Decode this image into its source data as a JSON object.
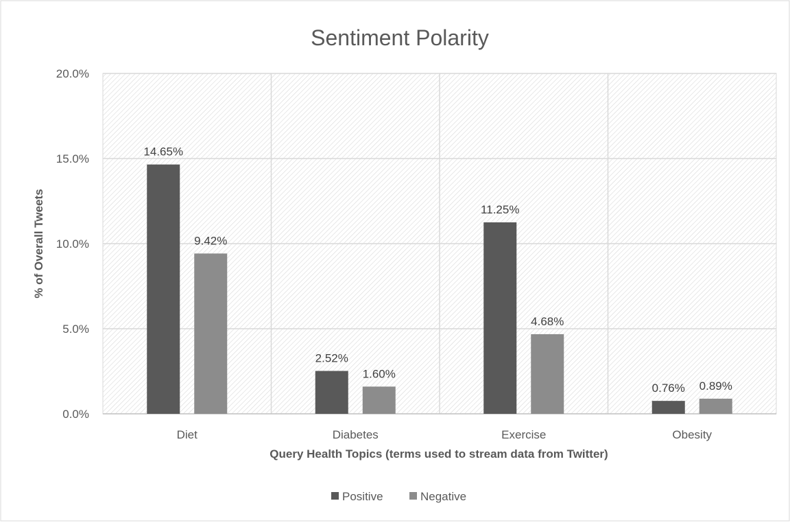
{
  "chart_data": {
    "type": "bar",
    "title": "Sentiment Polarity",
    "xlabel": "Query Health Topics (terms used to stream data from Twitter)",
    "ylabel": "%  of Overall Tweets",
    "categories": [
      "Diet",
      "Diabetes",
      "Exercise",
      "Obesity"
    ],
    "series": [
      {
        "name": "Positive",
        "values": [
          14.65,
          2.52,
          11.25,
          0.76
        ],
        "labels": [
          "14.65%",
          "2.52%",
          "11.25%",
          "0.76%"
        ],
        "color": "#595959"
      },
      {
        "name": "Negative",
        "values": [
          9.42,
          1.6,
          4.68,
          0.89
        ],
        "labels": [
          "9.42%",
          "1.60%",
          "4.68%",
          "0.89%"
        ],
        "color": "#8c8c8c"
      }
    ],
    "ylim": [
      0,
      20
    ],
    "yticks": [
      0,
      5,
      10,
      15,
      20
    ],
    "ytick_labels": [
      "0.0%",
      "5.0%",
      "10.0%",
      "15.0%",
      "20.0%"
    ],
    "grid": true,
    "background": "diagonal-hatch",
    "legend_position": "bottom-center"
  }
}
